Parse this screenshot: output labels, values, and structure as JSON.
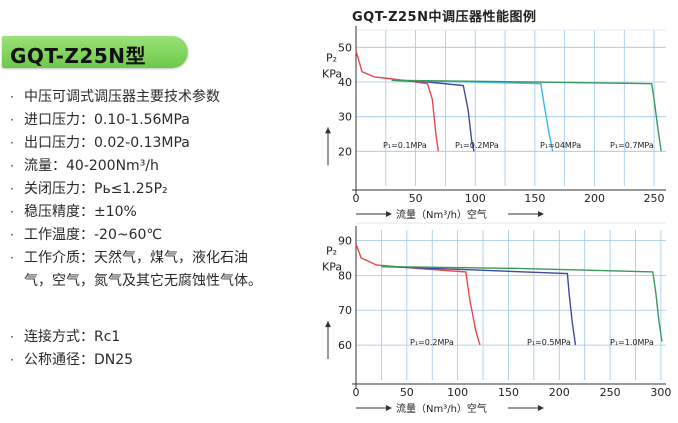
{
  "model_badge": "GQT-Z25N型",
  "specs": [
    "中压可调式调压器主要技术参数",
    "进口压力：0.10-1.56MPa",
    "出口压力：0.02-0.13MPa",
    "流量：40-200Nm³/h",
    "关闭压力：Pь≤1.25P₂",
    "稳压精度：±10%",
    "工作温度：-20~60℃",
    "工作介质：天然气，煤气，液化石油气，空气，氮气及其它无腐蚀性气体。",
    "连接方式：Rc1",
    "公称通径：DN25"
  ],
  "bullet": "·",
  "chart_title": "GQT-Z25N中调压器性能图例",
  "chart_data": [
    {
      "type": "line",
      "ylabel": "P₂",
      "yunit": "KPa",
      "xlabel": "流量（Nm³/h）空气",
      "xlim": [
        0,
        260
      ],
      "ylim": [
        10,
        55
      ],
      "x_ticks": [
        0,
        50,
        100,
        150,
        200,
        250
      ],
      "y_ticks": [
        20,
        30,
        40,
        50
      ],
      "grid": true,
      "series": [
        {
          "name": "P₁=0.1MPa",
          "color": "#e8484a",
          "x": [
            0,
            5,
            15,
            40,
            60,
            64,
            67,
            69
          ],
          "y": [
            49,
            43,
            41.5,
            40.5,
            39.5,
            35,
            25,
            20
          ]
        },
        {
          "name": "P₁=0.2MPa",
          "color": "#404aa0",
          "x": [
            30,
            60,
            90,
            94,
            97,
            99
          ],
          "y": [
            40.5,
            40,
            39,
            32,
            23,
            20
          ]
        },
        {
          "name": "P₁=04MPa",
          "color": "#3ab8e8",
          "x": [
            30,
            100,
            155,
            158,
            162,
            165
          ],
          "y": [
            40.5,
            40,
            39.5,
            33,
            25,
            20
          ]
        },
        {
          "name": "P₁=0.7MPa",
          "color": "#3a9a5a",
          "x": [
            30,
            150,
            248,
            250,
            253,
            256
          ],
          "y": [
            40.5,
            40,
            39.5,
            35,
            27,
            20
          ]
        }
      ]
    },
    {
      "type": "line",
      "ylabel": "P₂",
      "yunit": "KPa",
      "xlabel": "流量（Nm³/h）空气",
      "xlim": [
        0,
        305
      ],
      "ylim": [
        50,
        93
      ],
      "x_ticks": [
        0,
        50,
        100,
        150,
        200,
        250,
        300
      ],
      "y_ticks": [
        60,
        70,
        80,
        90
      ],
      "grid": true,
      "series": [
        {
          "name": "P₁=0.2MPa",
          "color": "#e8484a",
          "x": [
            0,
            5,
            20,
            60,
            108,
            112,
            118,
            122
          ],
          "y": [
            89,
            85,
            83,
            82,
            81,
            73,
            64,
            60
          ]
        },
        {
          "name": "P₁=0.5MPa",
          "color": "#404aa0",
          "x": [
            25,
            120,
            208,
            210,
            213,
            216
          ],
          "y": [
            82.5,
            81.5,
            80.5,
            74,
            66,
            60
          ]
        },
        {
          "name": "P₁=1.0MPa",
          "color": "#3a9a5a",
          "x": [
            25,
            160,
            292,
            295,
            298,
            301
          ],
          "y": [
            82.5,
            82,
            81,
            75,
            67,
            61
          ]
        }
      ]
    }
  ]
}
